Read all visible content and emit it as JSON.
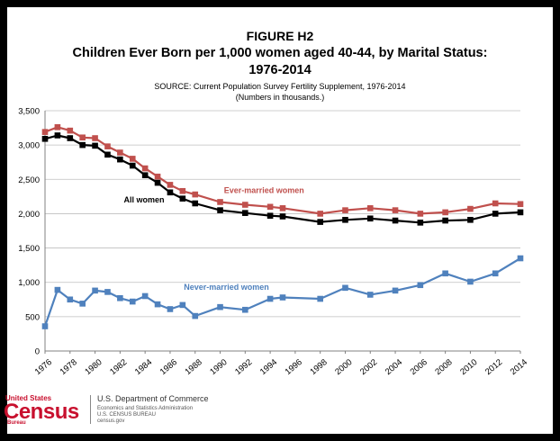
{
  "header": {
    "figure_label": "FIGURE H2",
    "title_line1": "Children Ever Born per 1,000 women aged 40-44, by Marital Status:",
    "title_line2": "1976-2014",
    "source": "SOURCE: Current Population Survey Fertility Supplement, 1976-2014",
    "units_note": "(Numbers in thousands.)"
  },
  "chart_data": {
    "type": "line",
    "title": "Children Ever Born per 1,000 women aged 40-44, by Marital Status: 1976-2014",
    "xlabel": "",
    "ylabel": "",
    "ylim": [
      0,
      3500
    ],
    "yticks": [
      0,
      500,
      1000,
      1500,
      2000,
      2500,
      3000,
      3500
    ],
    "ytick_labels": [
      "0",
      "500",
      "1,000",
      "1,500",
      "2,000",
      "2,500",
      "3,000",
      "3,500"
    ],
    "xlim": [
      1976,
      2014
    ],
    "xticks": [
      1976,
      1978,
      1980,
      1982,
      1984,
      1986,
      1988,
      1990,
      1992,
      1994,
      1996,
      1998,
      2000,
      2002,
      2004,
      2006,
      2008,
      2010,
      2012,
      2014
    ],
    "xtick_labels": [
      "1976",
      "1978",
      "1980",
      "1982",
      "1984",
      "1986",
      "1988",
      "1990",
      "1992",
      "1994",
      "1996",
      "1998",
      "2000",
      "2002",
      "2004",
      "2006",
      "2008",
      "2010",
      "2012",
      "2014"
    ],
    "grid": true,
    "series": [
      {
        "name": "Ever-married women",
        "color": "#c0504d",
        "x": [
          1976,
          1977,
          1978,
          1979,
          1980,
          1981,
          1982,
          1983,
          1984,
          1985,
          1986,
          1987,
          1988,
          1990,
          1992,
          1994,
          1995,
          1998,
          2000,
          2002,
          2004,
          2006,
          2008,
          2010,
          2012,
          2014
        ],
        "values": [
          3190,
          3260,
          3210,
          3110,
          3100,
          2980,
          2890,
          2800,
          2660,
          2540,
          2420,
          2330,
          2280,
          2170,
          2130,
          2100,
          2080,
          2000,
          2050,
          2080,
          2050,
          2000,
          2020,
          2070,
          2150,
          2140
        ]
      },
      {
        "name": "All women",
        "color": "#000000",
        "x": [
          1976,
          1977,
          1978,
          1979,
          1980,
          1981,
          1982,
          1983,
          1984,
          1985,
          1986,
          1987,
          1988,
          1990,
          1992,
          1994,
          1995,
          1998,
          2000,
          2002,
          2004,
          2006,
          2008,
          2010,
          2012,
          2014
        ],
        "values": [
          3090,
          3140,
          3100,
          3000,
          2990,
          2860,
          2790,
          2700,
          2560,
          2450,
          2310,
          2220,
          2150,
          2050,
          2010,
          1970,
          1960,
          1880,
          1910,
          1930,
          1900,
          1870,
          1900,
          1910,
          2000,
          2020
        ]
      },
      {
        "name": "Never-married women",
        "color": "#4f81bd",
        "x": [
          1976,
          1977,
          1978,
          1979,
          1980,
          1981,
          1982,
          1983,
          1984,
          1985,
          1986,
          1987,
          1988,
          1990,
          1992,
          1994,
          1995,
          1998,
          2000,
          2002,
          2004,
          2006,
          2008,
          2010,
          2012,
          2014
        ],
        "values": [
          360,
          890,
          750,
          690,
          880,
          860,
          770,
          720,
          800,
          680,
          610,
          670,
          510,
          640,
          600,
          760,
          780,
          760,
          920,
          820,
          880,
          960,
          1130,
          1010,
          1130,
          1350
        ]
      }
    ],
    "annotations": [
      {
        "text": "Ever-married women",
        "color": "#c0504d",
        "x": 1990.3,
        "y": 2300
      },
      {
        "text": "All women",
        "color": "#000000",
        "x": 1982.3,
        "y": 2160
      },
      {
        "text": "Never-married women",
        "color": "#4f81bd",
        "x": 1987.1,
        "y": 890
      }
    ]
  },
  "footer": {
    "logo_top": "United States",
    "logo_main": "Census",
    "logo_sub": "Bureau",
    "dept_name": "U.S. Department of Commerce",
    "dept_line1": "Economics and Statistics Administration",
    "dept_line2": "U.S. CENSUS BUREAU",
    "dept_line3": "census.gov"
  }
}
